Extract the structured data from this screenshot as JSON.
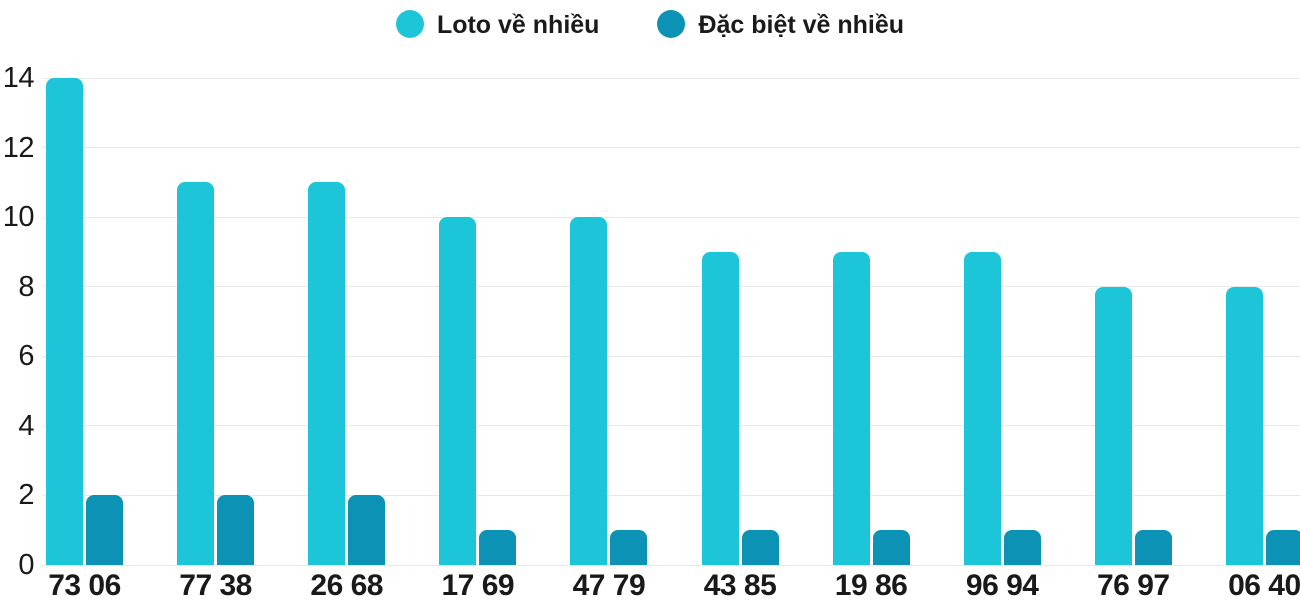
{
  "legend": {
    "items": [
      {
        "id": "loto",
        "label": "Loto về nhiều",
        "color": "#1cc6d8"
      },
      {
        "id": "dacbiet",
        "label": "Đặc biệt về nhiều",
        "color": "#0c92b4"
      }
    ]
  },
  "chart_data": {
    "type": "bar",
    "title": "",
    "xlabel": "",
    "ylabel": "",
    "categories": [
      "73 06",
      "77 38",
      "26 68",
      "17 69",
      "47 79",
      "43 85",
      "19 86",
      "96 94",
      "76 97",
      "06 40"
    ],
    "series": [
      {
        "name": "Loto về nhiều",
        "color": "#1cc6d8",
        "values": [
          14,
          11,
          11,
          10,
          10,
          9,
          9,
          9,
          8,
          8
        ]
      },
      {
        "name": "Đặc biệt về nhiều",
        "color": "#0c92b4",
        "values": [
          2,
          2,
          2,
          1,
          1,
          1,
          1,
          1,
          1,
          1
        ]
      }
    ],
    "ylim": [
      0,
      14
    ],
    "yticks": [
      0,
      2,
      4,
      6,
      8,
      10,
      12,
      14
    ],
    "grid": "horizontal",
    "legend_position": "top-center",
    "colors": {
      "grid": "#e8e8e8",
      "text": "#191919",
      "background": "#ffffff"
    }
  }
}
